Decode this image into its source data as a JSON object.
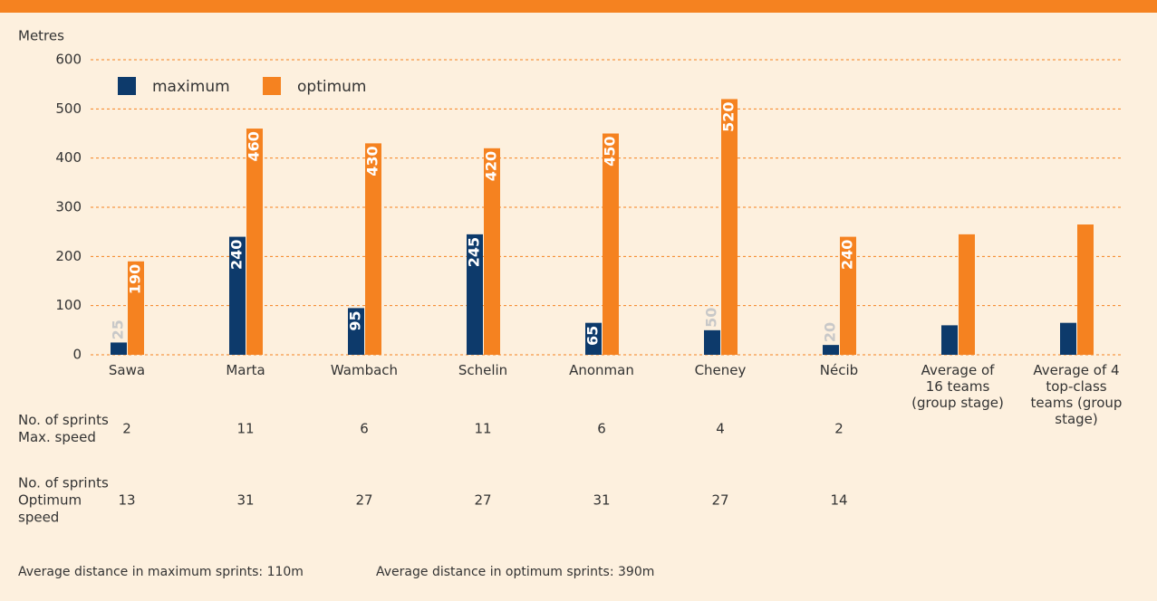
{
  "chart_data": {
    "type": "bar",
    "y_label": "Metres",
    "categories": [
      "Sawa",
      "Marta",
      "Wambach",
      "Schelin",
      "Anonman",
      "Cheney",
      "Nécib",
      "Average of 16 teams (group stage)",
      "Average of 4 top-class teams (group stage)"
    ],
    "series": [
      {
        "name": "maximum",
        "color": "#0d3a6b",
        "values": [
          25,
          240,
          95,
          245,
          65,
          50,
          20,
          60,
          65
        ],
        "value_labels": [
          "25",
          "240",
          "95",
          "245",
          "65",
          "50",
          "20",
          null,
          null
        ]
      },
      {
        "name": "optimum",
        "color": "#f58220",
        "values": [
          190,
          460,
          430,
          420,
          450,
          520,
          240,
          245,
          265
        ],
        "value_labels": [
          "190",
          "460",
          "430",
          "420",
          "450",
          "520",
          "240",
          null,
          null
        ]
      }
    ],
    "ylim": [
      0,
      600
    ],
    "yticks": [
      0,
      100,
      200,
      300,
      400,
      500,
      600
    ],
    "grid": true,
    "rows": [
      {
        "label": [
          "No. of sprints",
          "Max. speed"
        ],
        "values": [
          2,
          11,
          6,
          11,
          6,
          4,
          2
        ]
      },
      {
        "label": [
          "No. of sprints",
          "Optimum",
          "speed"
        ],
        "values": [
          13,
          31,
          27,
          27,
          31,
          27,
          14
        ]
      }
    ],
    "notes": [
      "Average distance in maximum sprints: 110m",
      "Average distance in optimum sprints: 390m"
    ]
  }
}
